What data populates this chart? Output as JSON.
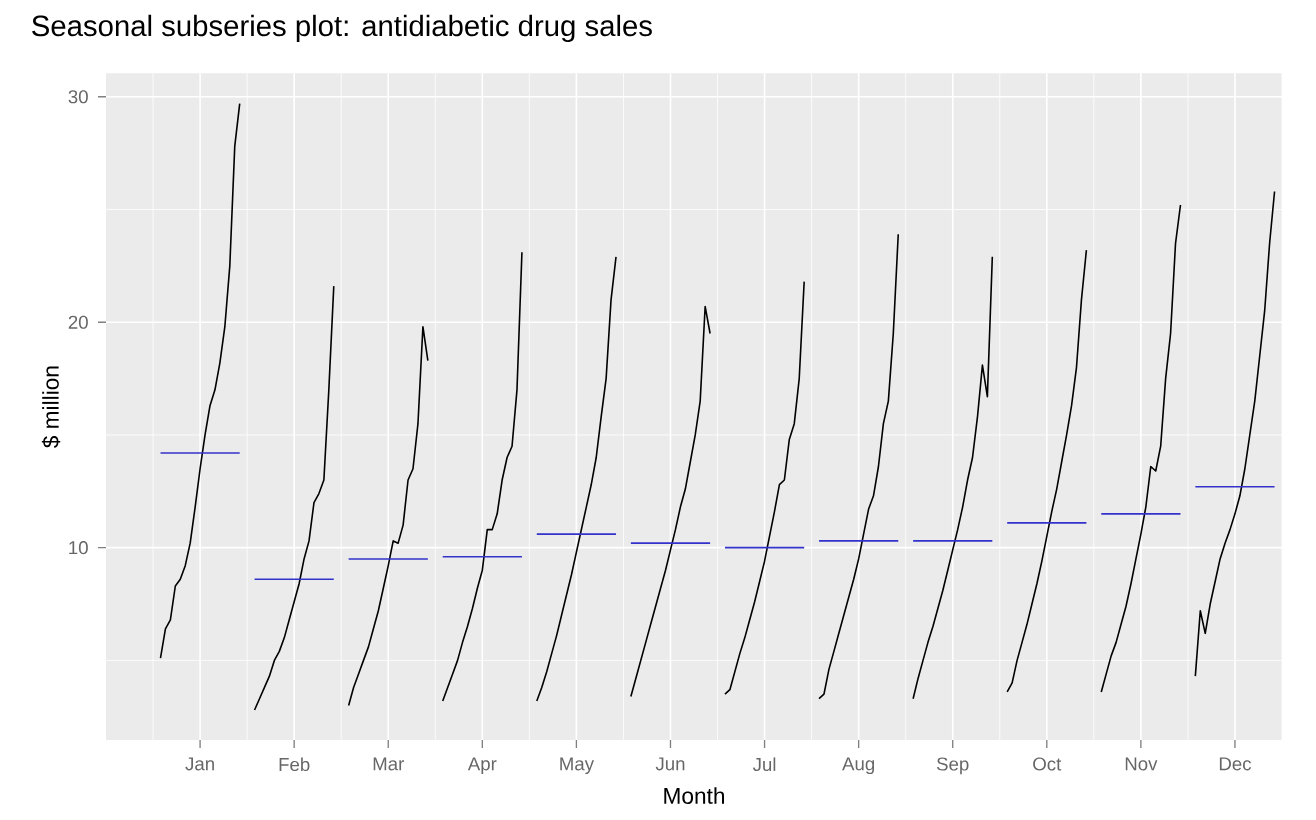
{
  "chart_data": {
    "type": "line",
    "title": "Seasonal subseries plot: antidiabetic drug sales",
    "xlabel": "Month",
    "ylabel": "$ million",
    "categories": [
      null,
      null,
      null,
      null,
      null,
      null,
      null,
      null,
      "Jan",
      null,
      null,
      null,
      null,
      null,
      null,
      null,
      null,
      null,
      null,
      null,
      null,
      null,
      null,
      null,
      null,
      null,
      null,
      "Feb",
      null,
      null,
      null,
      null,
      null,
      null,
      null,
      null,
      null,
      null,
      null,
      null,
      null,
      null,
      null,
      null,
      null,
      null,
      "Mar",
      null,
      null,
      null,
      null,
      null,
      null,
      null,
      null,
      null,
      null,
      null,
      null,
      null,
      null,
      null,
      null,
      null,
      null,
      "Apr",
      null,
      null,
      null,
      null,
      null,
      null,
      null,
      null,
      null,
      null,
      null,
      null,
      null,
      null,
      null,
      null,
      null,
      null,
      "May",
      null,
      null,
      null,
      null,
      null,
      null,
      null,
      null,
      null,
      null,
      null,
      null,
      null,
      null,
      null,
      null,
      null,
      null,
      "Jun",
      null,
      null,
      null,
      null,
      null,
      null,
      null,
      null,
      null,
      null,
      null,
      null,
      null,
      null,
      null,
      null,
      null,
      null,
      "Jul",
      null,
      null,
      null,
      null,
      null,
      null,
      null,
      null,
      null,
      null,
      null,
      null,
      null,
      null,
      null,
      null,
      null,
      null,
      "Aug",
      null,
      null,
      null,
      null,
      null,
      null,
      null,
      null,
      null,
      null,
      null,
      null,
      null,
      null,
      null,
      null,
      null,
      null,
      "Sep",
      null,
      null,
      null,
      null,
      null,
      null,
      null,
      null,
      null,
      null,
      null,
      null,
      null,
      null,
      null,
      null,
      null,
      null,
      "Oct",
      null,
      null,
      null,
      null,
      null,
      null,
      null,
      null,
      null,
      null,
      null,
      null,
      null,
      null,
      null,
      null,
      null,
      null,
      "Nov",
      null,
      null,
      null,
      null,
      null,
      null,
      null,
      null,
      null,
      null,
      null,
      null,
      null,
      null,
      null,
      null,
      null,
      null,
      "Dec",
      null,
      null,
      null,
      null,
      null,
      null,
      null,
      null,
      null,
      null
    ],
    "ylim": [
      1.47,
      31.04
    ],
    "yticks": [
      10,
      20,
      30
    ],
    "grid": true,
    "series": [
      {
        "color": "#000000",
        "values": [
          5.1,
          6.4,
          6.8,
          8.3,
          8.6,
          9.2,
          10.2,
          11.8,
          13.5,
          15.0,
          16.3,
          17.0,
          18.2,
          19.8,
          22.5,
          27.8,
          29.7,
          null,
          null,
          2.8,
          3.3,
          3.8,
          4.3,
          5.0,
          5.4,
          6.0,
          6.8,
          7.6,
          8.4,
          9.5,
          10.3,
          12.0,
          12.4,
          13.0,
          17.0,
          21.6,
          null,
          null,
          3.0,
          3.8,
          4.4,
          5.0,
          5.6,
          6.4,
          7.2,
          8.2,
          9.2,
          10.3,
          10.2,
          11.0,
          13.0,
          13.5,
          15.5,
          19.8,
          18.3,
          null,
          null,
          3.2,
          3.8,
          4.4,
          5.0,
          5.8,
          6.5,
          7.3,
          8.2,
          9.0,
          10.8,
          10.8,
          11.5,
          13.0,
          14.0,
          14.5,
          17.0,
          23.1,
          null,
          null,
          3.2,
          3.8,
          4.5,
          5.3,
          6.1,
          7.0,
          7.9,
          8.8,
          9.8,
          10.8,
          11.8,
          12.8,
          14.0,
          15.8,
          17.5,
          21.0,
          22.9,
          null,
          null,
          3.4,
          4.2,
          5.0,
          5.8,
          6.6,
          7.4,
          8.2,
          9.0,
          9.9,
          10.8,
          11.8,
          12.6,
          13.8,
          15.0,
          16.5,
          20.7,
          19.5,
          null,
          null,
          3.5,
          3.7,
          4.5,
          5.3,
          6.0,
          6.8,
          7.6,
          8.5,
          9.4,
          10.5,
          11.6,
          12.8,
          13.0,
          14.8,
          15.5,
          17.5,
          21.8,
          null,
          null,
          3.3,
          3.5,
          4.6,
          5.4,
          6.2,
          7.0,
          7.8,
          8.6,
          9.5,
          10.6,
          11.7,
          12.3,
          13.6,
          15.5,
          16.5,
          19.5,
          23.9,
          null,
          null,
          3.3,
          4.2,
          5.0,
          5.8,
          6.5,
          7.3,
          8.1,
          9.0,
          9.9,
          10.8,
          11.8,
          13.0,
          14.0,
          15.8,
          18.1,
          16.7,
          22.9,
          null,
          null,
          3.6,
          4.0,
          5.0,
          5.8,
          6.6,
          7.5,
          8.4,
          9.4,
          10.5,
          11.6,
          12.6,
          13.8,
          15.0,
          16.3,
          18.0,
          21.0,
          23.2,
          null,
          null,
          3.6,
          4.4,
          5.2,
          5.8,
          6.6,
          7.4,
          8.4,
          9.5,
          10.6,
          11.8,
          13.6,
          13.4,
          14.5,
          17.5,
          19.5,
          23.5,
          25.2,
          null,
          null,
          4.3,
          7.2,
          6.2,
          7.5,
          8.5,
          9.5,
          10.2,
          10.8,
          11.5,
          12.3,
          13.5,
          15.0,
          16.5,
          18.5,
          20.5,
          23.5,
          25.8,
          null,
          null
        ]
      },
      {
        "color": "#3333cc",
        "values": [
          14.2,
          14.2,
          14.2,
          14.2,
          14.2,
          14.2,
          14.2,
          14.2,
          14.2,
          14.2,
          14.2,
          14.2,
          14.2,
          14.2,
          14.2,
          14.2,
          14.2,
          null,
          null,
          8.6,
          8.6,
          8.6,
          8.6,
          8.6,
          8.6,
          8.6,
          8.6,
          8.6,
          8.6,
          8.6,
          8.6,
          8.6,
          8.6,
          8.6,
          8.6,
          8.6,
          null,
          null,
          9.5,
          9.5,
          9.5,
          9.5,
          9.5,
          9.5,
          9.5,
          9.5,
          9.5,
          9.5,
          9.5,
          9.5,
          9.5,
          9.5,
          9.5,
          9.5,
          9.5,
          null,
          null,
          9.6,
          9.6,
          9.6,
          9.6,
          9.6,
          9.6,
          9.6,
          9.6,
          9.6,
          9.6,
          9.6,
          9.6,
          9.6,
          9.6,
          9.6,
          9.6,
          9.6,
          null,
          null,
          10.6,
          10.6,
          10.6,
          10.6,
          10.6,
          10.6,
          10.6,
          10.6,
          10.6,
          10.6,
          10.6,
          10.6,
          10.6,
          10.6,
          10.6,
          10.6,
          10.6,
          null,
          null,
          10.2,
          10.2,
          10.2,
          10.2,
          10.2,
          10.2,
          10.2,
          10.2,
          10.2,
          10.2,
          10.2,
          10.2,
          10.2,
          10.2,
          10.2,
          10.2,
          10.2,
          null,
          null,
          10.0,
          10.0,
          10.0,
          10.0,
          10.0,
          10.0,
          10.0,
          10.0,
          10.0,
          10.0,
          10.0,
          10.0,
          10.0,
          10.0,
          10.0,
          10.0,
          10.0,
          null,
          null,
          10.3,
          10.3,
          10.3,
          10.3,
          10.3,
          10.3,
          10.3,
          10.3,
          10.3,
          10.3,
          10.3,
          10.3,
          10.3,
          10.3,
          10.3,
          10.3,
          10.3,
          null,
          null,
          10.3,
          10.3,
          10.3,
          10.3,
          10.3,
          10.3,
          10.3,
          10.3,
          10.3,
          10.3,
          10.3,
          10.3,
          10.3,
          10.3,
          10.3,
          10.3,
          10.3,
          null,
          null,
          11.1,
          11.1,
          11.1,
          11.1,
          11.1,
          11.1,
          11.1,
          11.1,
          11.1,
          11.1,
          11.1,
          11.1,
          11.1,
          11.1,
          11.1,
          11.1,
          11.1,
          null,
          null,
          11.5,
          11.5,
          11.5,
          11.5,
          11.5,
          11.5,
          11.5,
          11.5,
          11.5,
          11.5,
          11.5,
          11.5,
          11.5,
          11.5,
          11.5,
          11.5,
          11.5,
          null,
          null,
          12.7,
          12.7,
          12.7,
          12.7,
          12.7,
          12.7,
          12.7,
          12.7,
          12.7,
          12.7,
          12.7,
          12.7,
          12.7,
          12.7,
          12.7,
          12.7,
          12.7,
          null,
          null
        ]
      }
    ]
  }
}
